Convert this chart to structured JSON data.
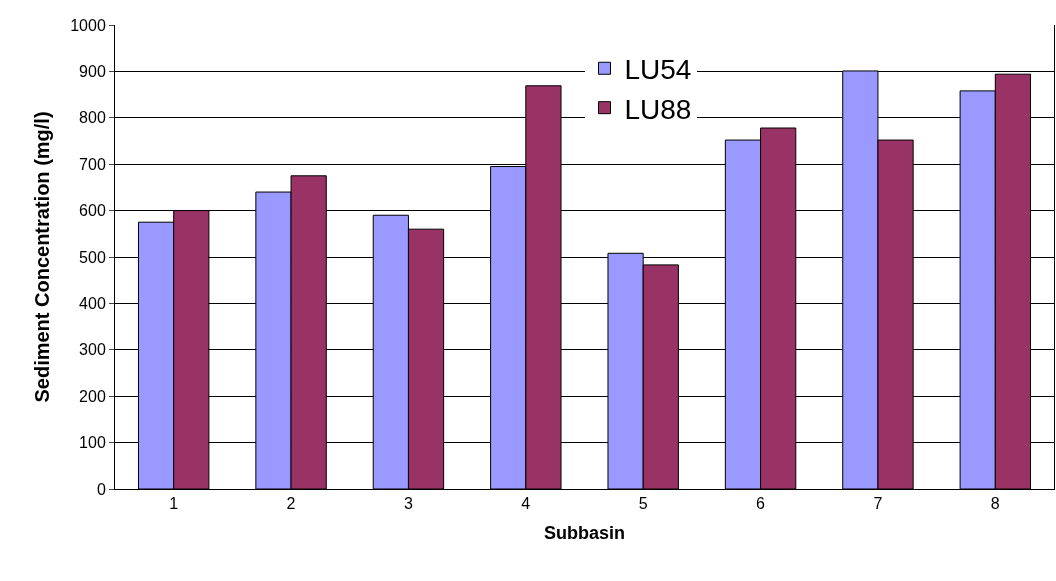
{
  "chart_data": {
    "type": "bar",
    "xlabel": "Subbasin",
    "ylabel": "Sediment Concentration (mg/l)",
    "categories": [
      "1",
      "2",
      "3",
      "4",
      "5",
      "6",
      "7",
      "8"
    ],
    "series": [
      {
        "name": "LU54",
        "color": "#9999ff",
        "values": [
          575,
          640,
          590,
          695,
          508,
          752,
          901,
          858
        ]
      },
      {
        "name": "LU88",
        "color": "#993366",
        "values": [
          600,
          675,
          560,
          869,
          483,
          778,
          752,
          894
        ]
      }
    ],
    "ylim": [
      0,
      1000
    ],
    "yticks": [
      0,
      100,
      200,
      300,
      400,
      500,
      600,
      700,
      800,
      900,
      1000
    ],
    "grid": "y",
    "legend": "top"
  }
}
